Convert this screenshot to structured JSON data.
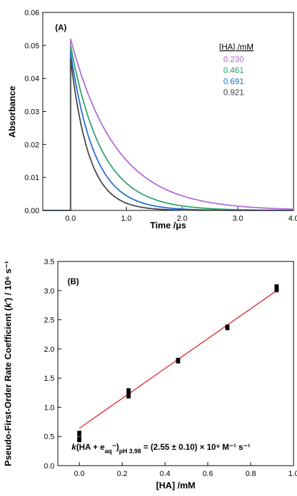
{
  "chart_data": [
    {
      "type": "line",
      "panel_label": "(A)",
      "xlabel": "Time /μs",
      "ylabel": "Absorbance",
      "xlim": [
        -0.5,
        4.0
      ],
      "ylim": [
        0,
        0.06
      ],
      "x_ticks": [
        0.0,
        1.0,
        2.0,
        3.0,
        4.0
      ],
      "x_tick_labels": [
        "0.0",
        "1.0",
        "2.0",
        "3.0",
        "4.0"
      ],
      "y_ticks": [
        0.0,
        0.01,
        0.02,
        0.03,
        0.04,
        0.05,
        0.06
      ],
      "y_tick_labels": [
        "0.00",
        "0.01",
        "0.02",
        "0.03",
        "0.04",
        "0.05",
        "0.06"
      ],
      "grid": false,
      "legend": {
        "title": "[HA] /mM",
        "position": "top-right"
      },
      "series": [
        {
          "name": "0.230",
          "color": "#b06ad6",
          "peak": 0.052,
          "decay_rate_per_us": 1.23
        },
        {
          "name": "0.461",
          "color": "#2ea36b",
          "peak": 0.05,
          "decay_rate_per_us": 1.8
        },
        {
          "name": "0.691",
          "color": "#1f6fd6",
          "peak": 0.048,
          "decay_rate_per_us": 2.37
        },
        {
          "name": "0.921",
          "color": "#444444",
          "peak": 0.046,
          "decay_rate_per_us": 3.04
        }
      ]
    },
    {
      "type": "scatter",
      "panel_label": "(B)",
      "xlabel": "[HA] /mM",
      "ylabel": "Pseudo-First-Order Rate Coefficient (k') / 10⁶ s⁻¹",
      "xlim": [
        -0.1,
        1.0
      ],
      "ylim": [
        0,
        3.5
      ],
      "x_ticks": [
        0.0,
        0.2,
        0.4,
        0.6,
        0.8,
        1.0
      ],
      "x_tick_labels": [
        "0.0",
        "0.2",
        "0.4",
        "0.6",
        "0.8",
        "1.0"
      ],
      "y_ticks": [
        0.0,
        0.5,
        1.0,
        1.5,
        2.0,
        2.5,
        3.0,
        3.5
      ],
      "y_tick_labels": [
        "0.0",
        "0.5",
        "1.0",
        "1.5",
        "2.0",
        "2.5",
        "3.0",
        "3.5"
      ],
      "grid": false,
      "points": [
        {
          "x": 0.0,
          "y": 0.55
        },
        {
          "x": 0.0,
          "y": 0.45
        },
        {
          "x": 0.23,
          "y": 1.28
        },
        {
          "x": 0.23,
          "y": 1.2
        },
        {
          "x": 0.461,
          "y": 1.8
        },
        {
          "x": 0.691,
          "y": 2.37
        },
        {
          "x": 0.921,
          "y": 3.06
        },
        {
          "x": 0.921,
          "y": 3.02
        }
      ],
      "fit": {
        "x": [
          0.0,
          0.921
        ],
        "y": [
          0.64,
          3.0
        ],
        "color": "#e02020"
      },
      "annotation": "k(HA + eaq⁻)pH 3.98 = (2.55 ± 0.10) × 10⁹ M⁻¹ s⁻¹"
    }
  ]
}
